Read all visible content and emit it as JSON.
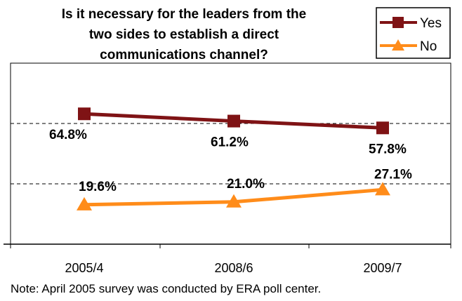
{
  "title_lines": [
    "Is it necessary for the leaders from the",
    "two sides to establish a direct",
    "communications channel?"
  ],
  "note": "Note: April 2005 survey was conducted by ERA poll center.",
  "colors": {
    "yes": "#7f1315",
    "no": "#ff8c1a",
    "grid": "#000000",
    "frame": "#000000"
  },
  "chart_data": {
    "type": "line",
    "categories": [
      "2005/4",
      "2008/6",
      "2009/7"
    ],
    "series": [
      {
        "name": "Yes",
        "values": [
          64.8,
          61.2,
          57.8
        ],
        "labels": [
          "64.8%",
          "61.2%",
          "57.8%"
        ],
        "marker": "square"
      },
      {
        "name": "No",
        "values": [
          19.6,
          21.0,
          27.1
        ],
        "labels": [
          "19.6%",
          "21.0%",
          "27.1%"
        ],
        "marker": "triangle"
      }
    ],
    "ylim": [
      0,
      90
    ],
    "grid": "dashed horizontal",
    "legend": "top-right",
    "xlabel": "",
    "ylabel": ""
  }
}
